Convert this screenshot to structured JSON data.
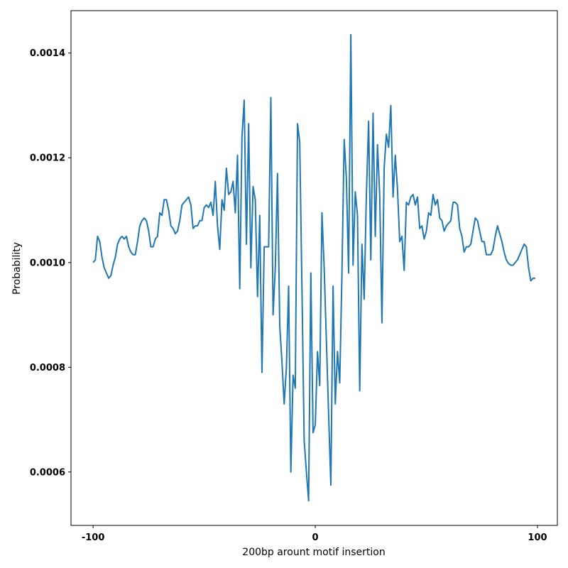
{
  "chart_data": {
    "type": "line",
    "xlabel": "200bp arount motif insertion",
    "ylabel": "Probability",
    "color": "#1f77b4",
    "x": [
      -100,
      -99,
      -98,
      -97,
      -96,
      -95,
      -94,
      -93,
      -92,
      -91,
      -90,
      -89,
      -88,
      -87,
      -86,
      -85,
      -84,
      -83,
      -82,
      -81,
      -80,
      -79,
      -78,
      -77,
      -76,
      -75,
      -74,
      -73,
      -72,
      -71,
      -70,
      -69,
      -68,
      -67,
      -66,
      -65,
      -64,
      -63,
      -62,
      -61,
      -60,
      -59,
      -58,
      -57,
      -56,
      -55,
      -54,
      -53,
      -52,
      -51,
      -50,
      -49,
      -48,
      -47,
      -46,
      -45,
      -44,
      -43,
      -42,
      -41,
      -40,
      -39,
      -38,
      -37,
      -36,
      -35,
      -34,
      -33,
      -32,
      -31,
      -30,
      -29,
      -28,
      -27,
      -26,
      -25,
      -24,
      -23,
      -22,
      -21,
      -20,
      -19,
      -18,
      -17,
      -16,
      -15,
      -14,
      -13,
      -12,
      -11,
      -10,
      -9,
      -8,
      -7,
      -6,
      -5,
      -4,
      -3,
      -2,
      -1,
      0,
      1,
      2,
      3,
      4,
      5,
      6,
      7,
      8,
      9,
      10,
      11,
      12,
      13,
      14,
      15,
      16,
      17,
      18,
      19,
      20,
      21,
      22,
      23,
      24,
      25,
      26,
      27,
      28,
      29,
      30,
      31,
      32,
      33,
      34,
      35,
      36,
      37,
      38,
      39,
      40,
      41,
      42,
      43,
      44,
      45,
      46,
      47,
      48,
      49,
      50,
      51,
      52,
      53,
      54,
      55,
      56,
      57,
      58,
      59,
      60,
      61,
      62,
      63,
      64,
      65,
      66,
      67,
      68,
      69,
      70,
      71,
      72,
      73,
      74,
      75,
      76,
      77,
      78,
      79,
      80,
      81,
      82,
      83,
      84,
      85,
      86,
      87,
      88,
      89,
      90,
      91,
      92,
      93,
      94,
      95,
      96,
      97,
      98,
      99
    ],
    "values": [
      0.001,
      0.001005,
      0.00105,
      0.00104,
      0.00101,
      0.00099,
      0.00098,
      0.00097,
      0.000975,
      0.000995,
      0.00101,
      0.001035,
      0.001045,
      0.00105,
      0.001045,
      0.00105,
      0.00103,
      0.00102,
      0.001015,
      0.001015,
      0.00104,
      0.00107,
      0.00108,
      0.001085,
      0.00108,
      0.00106,
      0.00103,
      0.00103,
      0.001045,
      0.00105,
      0.001095,
      0.00109,
      0.00112,
      0.00112,
      0.0011,
      0.00107,
      0.001065,
      0.001055,
      0.00106,
      0.00108,
      0.00111,
      0.001115,
      0.00112,
      0.001125,
      0.00111,
      0.001065,
      0.00107,
      0.00107,
      0.00108,
      0.00108,
      0.001105,
      0.00111,
      0.001105,
      0.001115,
      0.00109,
      0.001155,
      0.00107,
      0.001025,
      0.00112,
      0.0011,
      0.00118,
      0.00113,
      0.001135,
      0.001155,
      0.001095,
      0.001205,
      0.00095,
      0.00124,
      0.00131,
      0.001035,
      0.001265,
      0.00099,
      0.001145,
      0.00112,
      0.000935,
      0.00109,
      0.00079,
      0.00103,
      0.00103,
      0.00103,
      0.001315,
      0.0009,
      0.00099,
      0.00117,
      0.00088,
      0.00081,
      0.00073,
      0.0008,
      0.000955,
      0.0006,
      0.000785,
      0.00076,
      0.001265,
      0.00123,
      0.00095,
      0.00066,
      0.0006,
      0.000545,
      0.00098,
      0.000675,
      0.00069,
      0.00083,
      0.000765,
      0.001095,
      0.00099,
      0.00085,
      0.00071,
      0.000575,
      0.000955,
      0.00073,
      0.00083,
      0.00077,
      0.00098,
      0.001235,
      0.00116,
      0.00098,
      0.001435,
      0.000995,
      0.001135,
      0.00109,
      0.000755,
      0.001035,
      0.00093,
      0.00113,
      0.00127,
      0.001005,
      0.001285,
      0.00105,
      0.001225,
      0.00113,
      0.000885,
      0.00118,
      0.001245,
      0.00122,
      0.0013,
      0.001125,
      0.001205,
      0.00114,
      0.00104,
      0.00105,
      0.000985,
      0.001115,
      0.00111,
      0.001125,
      0.00113,
      0.00111,
      0.001125,
      0.001065,
      0.00107,
      0.001045,
      0.00106,
      0.001095,
      0.00109,
      0.00113,
      0.00111,
      0.00112,
      0.001085,
      0.00108,
      0.00106,
      0.00107,
      0.001075,
      0.00108,
      0.001115,
      0.001115,
      0.00111,
      0.001065,
      0.00105,
      0.00102,
      0.00103,
      0.00103,
      0.001035,
      0.00106,
      0.001085,
      0.00108,
      0.00106,
      0.00104,
      0.00104,
      0.001015,
      0.001015,
      0.001015,
      0.001025,
      0.00105,
      0.00107,
      0.001055,
      0.00104,
      0.00102,
      0.001005,
      0.000998,
      0.000995,
      0.000995,
      0.001,
      0.001005,
      0.001015,
      0.001025,
      0.001035,
      0.00103,
      0.00099,
      0.000965,
      0.00097,
      0.00097
    ],
    "xlim": [
      -109.95,
      108.95
    ],
    "xticks": [
      -100,
      0,
      100
    ],
    "ylim": [
      0.000498,
      0.001481
    ],
    "yticks": [
      0.0006,
      0.0008,
      {
        "value": 0.001,
        "label": "0.0010"
      },
      0.0012,
      0.0014
    ]
  }
}
